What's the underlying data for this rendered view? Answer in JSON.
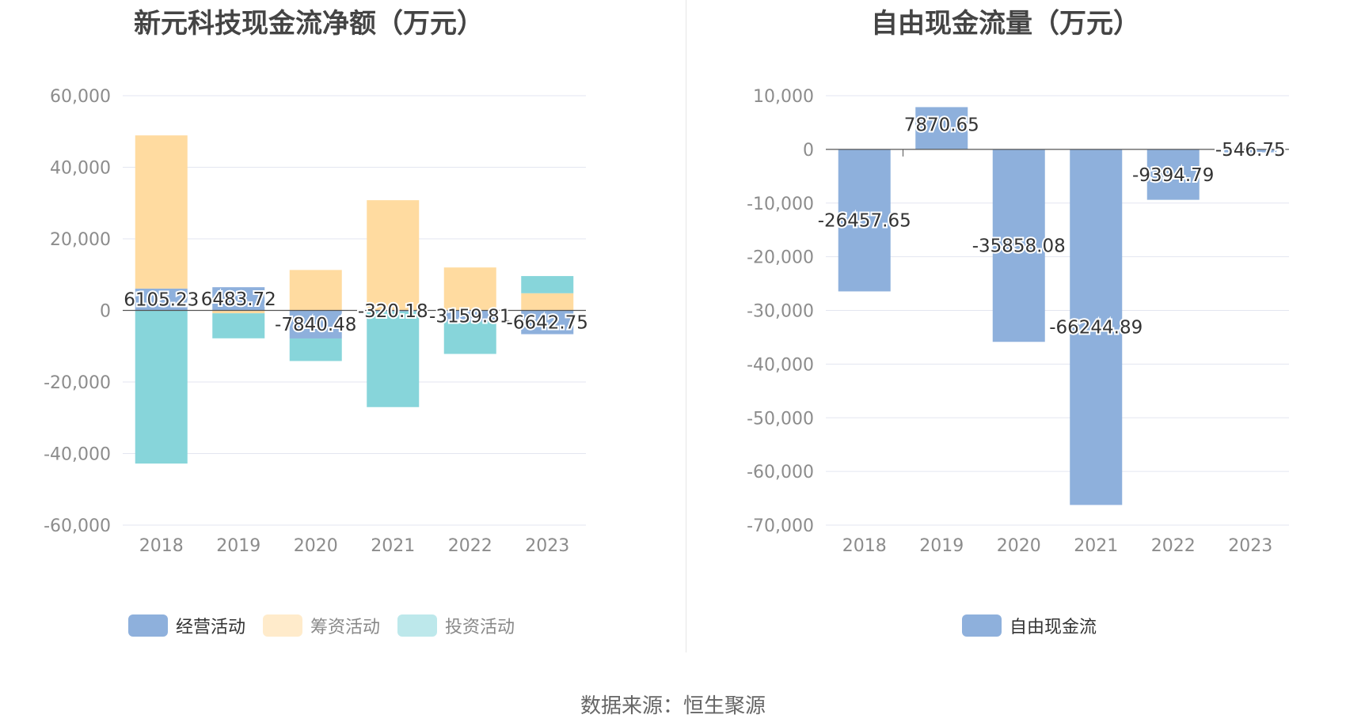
{
  "left_title": "新元科技现金流净额（万元）",
  "right_title": "自由现金流量（万元）",
  "source": "数据来源：恒生聚源",
  "chart_data": [
    {
      "type": "bar",
      "stacked": true,
      "title": "新元科技现金流净额（万元）",
      "categories": [
        "2018",
        "2019",
        "2020",
        "2021",
        "2022",
        "2023"
      ],
      "ylim": [
        -60000,
        60000
      ],
      "yticks": [
        60000,
        40000,
        20000,
        0,
        -20000,
        -40000,
        -60000
      ],
      "ytick_labels": [
        "60,000",
        "40,000",
        "20,000",
        "0",
        "-20,000",
        "-40,000",
        "-60,000"
      ],
      "grid": true,
      "legend_position": "bottom",
      "series": [
        {
          "name": "经营活动",
          "color": "#8eb0dc",
          "values": [
            6105.23,
            6483.72,
            -7840.48,
            -320.18,
            -3159.81,
            -6642.75
          ],
          "labels": [
            "6105.23",
            "6483.72",
            "-7840.48",
            "-320.18",
            "-3159.81",
            "-6642.75"
          ]
        },
        {
          "name": "筹资活动",
          "color": "#ffdba0",
          "values": [
            42800,
            -800,
            11300,
            30800,
            12000,
            4800
          ],
          "labels": []
        },
        {
          "name": "投资活动",
          "color": "#87d5da",
          "values": [
            -42800,
            -7000,
            -6300,
            -26700,
            -9000,
            4800
          ],
          "labels": []
        }
      ]
    },
    {
      "type": "bar",
      "title": "自由现金流量（万元）",
      "categories": [
        "2018",
        "2019",
        "2020",
        "2021",
        "2022",
        "2023"
      ],
      "ylim": [
        -70000,
        10000
      ],
      "yticks": [
        10000,
        0,
        -10000,
        -20000,
        -30000,
        -40000,
        -50000,
        -60000,
        -70000
      ],
      "ytick_labels": [
        "10,000",
        "0",
        "-10,000",
        "-20,000",
        "-30,000",
        "-40,000",
        "-50,000",
        "-60,000",
        "-70,000"
      ],
      "grid": true,
      "legend_position": "bottom",
      "series": [
        {
          "name": "自由现金流",
          "color": "#8eb0dc",
          "values": [
            -26457.65,
            7870.65,
            -35858.08,
            -66244.89,
            -9394.79,
            -546.75
          ],
          "labels": [
            "-26457.65",
            "7870.65",
            "-35858.08",
            "-66244.89",
            "-9394.79",
            "-546.75"
          ]
        }
      ]
    }
  ]
}
